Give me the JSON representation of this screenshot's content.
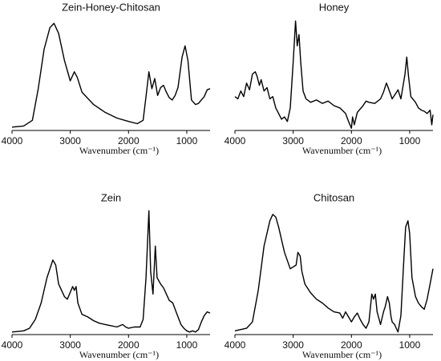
{
  "chart_data": [
    {
      "type": "line",
      "title": "Zein-Honey-Chitosan",
      "xlabel": "Wavenumber (cm⁻¹)",
      "x": [
        4000,
        3800,
        3650,
        3550,
        3450,
        3350,
        3280,
        3200,
        3100,
        3000,
        2930,
        2880,
        2800,
        2600,
        2400,
        2200,
        2000,
        1850,
        1750,
        1700,
        1650,
        1600,
        1550,
        1500,
        1450,
        1400,
        1350,
        1300,
        1250,
        1200,
        1150,
        1080,
        1030,
        980,
        920,
        850,
        800,
        750,
        700,
        650,
        600
      ],
      "values": [
        3,
        4,
        9,
        37,
        72,
        91,
        95,
        86,
        62,
        44,
        52,
        47,
        34,
        23,
        16,
        11,
        8,
        6,
        9,
        30,
        52,
        37,
        46,
        31,
        38,
        40,
        34,
        29,
        27,
        31,
        38,
        65,
        75,
        62,
        27,
        23,
        24,
        27,
        30,
        36,
        37
      ],
      "color": "#000000",
      "xlim": [
        4000,
        600
      ],
      "ylim": [
        0,
        100
      ],
      "xticks": [
        4000,
        3000,
        2000,
        1000
      ]
    },
    {
      "type": "line",
      "title": "Honey",
      "xlabel": "Wavenumber (cm⁻¹)",
      "x": [
        4000,
        3950,
        3900,
        3850,
        3800,
        3750,
        3700,
        3650,
        3620,
        3580,
        3550,
        3500,
        3450,
        3400,
        3350,
        3300,
        3250,
        3200,
        3150,
        3100,
        3050,
        3000,
        2960,
        2930,
        2900,
        2870,
        2830,
        2780,
        2700,
        2600,
        2500,
        2400,
        2300,
        2200,
        2100,
        2050,
        2000,
        1980,
        1950,
        1900,
        1800,
        1750,
        1700,
        1600,
        1500,
        1450,
        1400,
        1370,
        1300,
        1250,
        1200,
        1150,
        1080,
        1050,
        1020,
        980,
        900,
        850,
        800,
        750,
        700,
        650,
        620,
        600
      ],
      "values": [
        30,
        28,
        35,
        30,
        42,
        36,
        50,
        52,
        48,
        40,
        45,
        35,
        38,
        28,
        30,
        20,
        15,
        10,
        12,
        8,
        20,
        60,
        97,
        75,
        85,
        60,
        35,
        28,
        25,
        27,
        24,
        26,
        22,
        20,
        15,
        8,
        2,
        12,
        5,
        16,
        22,
        26,
        25,
        24,
        28,
        34,
        42,
        38,
        28,
        32,
        36,
        28,
        50,
        65,
        48,
        30,
        25,
        20,
        18,
        17,
        15,
        18,
        5,
        14
      ],
      "color": "#000000",
      "xlim": [
        4000,
        600
      ],
      "ylim": [
        0,
        100
      ],
      "xticks": [
        4000,
        3000,
        2000,
        1000
      ]
    },
    {
      "type": "line",
      "title": "Zein",
      "xlabel": "Wavenumber (cm⁻¹)",
      "x": [
        4000,
        3800,
        3700,
        3600,
        3500,
        3400,
        3300,
        3250,
        3200,
        3100,
        3050,
        2960,
        2930,
        2900,
        2870,
        2800,
        2700,
        2600,
        2500,
        2400,
        2300,
        2200,
        2100,
        2050,
        2000,
        1900,
        1800,
        1750,
        1700,
        1650,
        1620,
        1580,
        1540,
        1510,
        1450,
        1400,
        1350,
        1300,
        1240,
        1200,
        1150,
        1100,
        1050,
        1000,
        950,
        900,
        850,
        800,
        750,
        700,
        650,
        600
      ],
      "values": [
        2,
        3,
        5,
        12,
        25,
        45,
        59,
        55,
        40,
        30,
        28,
        38,
        35,
        38,
        25,
        16,
        14,
        11,
        9,
        8,
        7,
        6,
        8,
        6,
        5,
        6,
        6,
        12,
        45,
        98,
        50,
        32,
        70,
        45,
        40,
        37,
        32,
        27,
        25,
        20,
        14,
        8,
        5,
        3,
        2,
        3,
        2,
        4,
        10,
        15,
        18,
        17
      ],
      "color": "#000000",
      "xlim": [
        4000,
        600
      ],
      "ylim": [
        0,
        100
      ],
      "xticks": [
        4000,
        3000,
        2000,
        1000
      ]
    },
    {
      "type": "line",
      "title": "Chitosan",
      "xlabel": "Wavenumber (cm⁻¹)",
      "x": [
        4000,
        3800,
        3700,
        3600,
        3500,
        3400,
        3350,
        3300,
        3250,
        3150,
        3050,
        2950,
        2920,
        2880,
        2850,
        2800,
        2700,
        2600,
        2500,
        2400,
        2300,
        2200,
        2150,
        2100,
        2050,
        2000,
        1950,
        1900,
        1850,
        1800,
        1750,
        1700,
        1650,
        1620,
        1590,
        1560,
        1500,
        1450,
        1420,
        1380,
        1350,
        1320,
        1300,
        1260,
        1230,
        1200,
        1150,
        1100,
        1070,
        1030,
        1000,
        960,
        900,
        850,
        800,
        750,
        700,
        650,
        600
      ],
      "values": [
        3,
        5,
        10,
        35,
        70,
        90,
        95,
        93,
        85,
        65,
        52,
        55,
        65,
        62,
        50,
        40,
        33,
        28,
        25,
        21,
        18,
        17,
        13,
        18,
        14,
        10,
        14,
        17,
        12,
        8,
        5,
        10,
        32,
        28,
        32,
        18,
        8,
        18,
        22,
        30,
        25,
        14,
        10,
        8,
        5,
        2,
        15,
        60,
        85,
        90,
        80,
        45,
        30,
        25,
        22,
        20,
        28,
        40,
        52
      ],
      "color": "#000000",
      "xlim": [
        4000,
        600
      ],
      "ylim": [
        0,
        100
      ],
      "xticks": [
        4000,
        3000,
        2000,
        1000
      ]
    }
  ]
}
